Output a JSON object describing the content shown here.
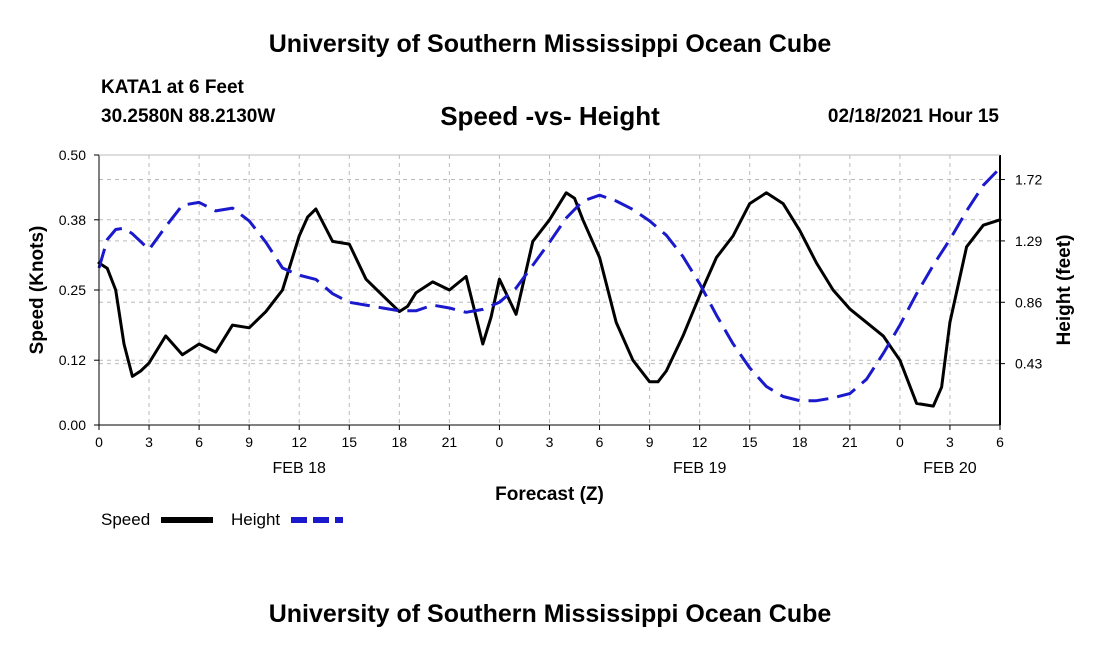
{
  "header": {
    "title": "University of Southern Mississippi Ocean Cube",
    "station_name": "KATA1 at 6 Feet",
    "station_coords": "30.2580N 88.2130W",
    "chart_title": "Speed -vs- Height",
    "valid_time": "02/18/2021 Hour 15"
  },
  "footer": {
    "title": "University of Southern Mississippi Ocean Cube"
  },
  "colors": {
    "speed": "#000000",
    "height": "#1a1acc",
    "grid": "#bbbbbb"
  },
  "chart_data": {
    "type": "line",
    "title": "Speed -vs- Height",
    "xlabel": "Forecast (Z)",
    "ylabel": "Speed (Knots)",
    "y2label": "Height (feet)",
    "x_unit": "hours since FEB 18 00Z",
    "xlim": [
      0,
      54
    ],
    "ylim": [
      0,
      0.5
    ],
    "y2lim": [
      0,
      1.892
    ],
    "x_ticks": [
      0,
      3,
      6,
      9,
      12,
      15,
      18,
      21,
      24,
      27,
      30,
      33,
      36,
      39,
      42,
      45,
      48,
      51,
      54
    ],
    "x_tick_labels": [
      "0",
      "3",
      "6",
      "9",
      "12",
      "15",
      "18",
      "21",
      "0",
      "3",
      "6",
      "9",
      "12",
      "15",
      "18",
      "21",
      "0",
      "3",
      "6"
    ],
    "date_labels": [
      {
        "x": 12,
        "label": "FEB 18"
      },
      {
        "x": 36,
        "label": "FEB 19"
      },
      {
        "x": 51,
        "label": "FEB 20"
      }
    ],
    "y_ticks": [
      0.0,
      0.12,
      0.25,
      0.38,
      0.5
    ],
    "y_tick_labels": [
      "0.00",
      "0.12",
      "0.25",
      "0.38",
      "0.50"
    ],
    "y2_ticks": [
      0.43,
      0.86,
      1.29,
      1.72
    ],
    "y2_tick_labels": [
      "0.43",
      "0.86",
      "1.29",
      "1.72"
    ],
    "grid": true,
    "legend": [
      "Speed",
      "Height"
    ],
    "legend_position": "bottom-left",
    "series": [
      {
        "name": "Speed",
        "axis": "left",
        "style": "solid",
        "x": [
          0,
          0.5,
          1,
          1.5,
          2,
          2.5,
          3,
          4,
          5,
          6,
          7,
          8,
          9,
          10,
          11,
          12,
          12.5,
          13,
          14,
          15,
          16,
          17,
          18,
          18.5,
          19,
          20,
          21,
          22,
          23,
          23.5,
          24,
          25,
          26,
          27,
          28,
          28.5,
          29,
          30,
          31,
          32,
          33,
          33.5,
          34,
          35,
          36,
          37,
          38,
          39,
          40,
          41,
          42,
          43,
          44,
          45,
          46,
          47,
          48,
          49,
          50,
          50.5,
          51,
          52,
          53,
          54
        ],
        "values": [
          0.3,
          0.29,
          0.25,
          0.15,
          0.09,
          0.1,
          0.115,
          0.165,
          0.13,
          0.15,
          0.135,
          0.185,
          0.18,
          0.21,
          0.25,
          0.35,
          0.385,
          0.4,
          0.34,
          0.335,
          0.27,
          0.24,
          0.21,
          0.22,
          0.245,
          0.265,
          0.25,
          0.275,
          0.15,
          0.2,
          0.27,
          0.205,
          0.34,
          0.38,
          0.43,
          0.42,
          0.38,
          0.31,
          0.19,
          0.12,
          0.08,
          0.08,
          0.1,
          0.165,
          0.24,
          0.31,
          0.35,
          0.41,
          0.43,
          0.41,
          0.36,
          0.3,
          0.25,
          0.215,
          0.19,
          0.165,
          0.12,
          0.04,
          0.035,
          0.07,
          0.19,
          0.33,
          0.37,
          0.38
        ]
      },
      {
        "name": "Height",
        "axis": "right",
        "style": "dashed",
        "x": [
          0,
          0.5,
          1,
          1.5,
          2,
          3,
          4,
          5,
          6,
          7,
          8,
          9,
          10,
          11,
          12,
          13,
          14,
          15,
          16,
          17,
          18,
          19,
          20,
          21,
          22,
          23,
          24,
          25,
          26,
          27,
          28,
          29,
          30,
          31,
          32,
          33,
          34,
          35,
          36,
          37,
          38,
          39,
          40,
          41,
          42,
          43,
          44,
          45,
          46,
          47,
          48,
          49,
          50,
          51,
          52,
          53,
          54
        ],
        "values": [
          1.1,
          1.3,
          1.37,
          1.38,
          1.34,
          1.23,
          1.39,
          1.54,
          1.56,
          1.5,
          1.52,
          1.43,
          1.28,
          1.1,
          1.05,
          1.02,
          0.92,
          0.86,
          0.84,
          0.82,
          0.8,
          0.8,
          0.84,
          0.82,
          0.79,
          0.81,
          0.86,
          0.96,
          1.12,
          1.28,
          1.45,
          1.57,
          1.61,
          1.57,
          1.51,
          1.43,
          1.33,
          1.18,
          0.99,
          0.77,
          0.57,
          0.4,
          0.27,
          0.2,
          0.17,
          0.17,
          0.19,
          0.22,
          0.32,
          0.5,
          0.7,
          0.92,
          1.12,
          1.3,
          1.5,
          1.68,
          1.8
        ]
      }
    ]
  }
}
